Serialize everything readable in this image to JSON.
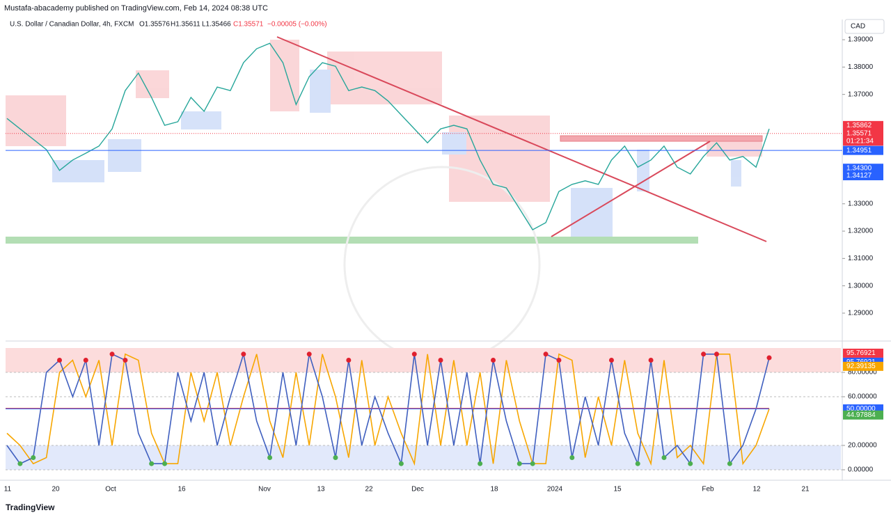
{
  "header": {
    "published": "Mustafa-abacademy published on TradingView.com, Feb 14, 2024 08:38 UTC",
    "symbol": "U.S. Dollar / Canadian Dollar, 4h, FXCM",
    "ohlc": [
      "O1.35576",
      "H1.35611",
      "L1.35466",
      "C1.35571",
      "−0.00005 (−0.00%)"
    ],
    "currency": "CAD",
    "footer": "TradingView"
  },
  "chart_data": [
    {
      "type": "line",
      "name": "price",
      "values": [
        1.3612,
        1.3574,
        1.3536,
        1.3498,
        1.3422,
        1.346,
        1.3485,
        1.3511,
        1.3574,
        1.3714,
        1.3778,
        1.3689,
        1.3587,
        1.36,
        1.3689,
        1.3638,
        1.3727,
        1.3714,
        1.3816,
        1.3867,
        1.3887,
        1.3816,
        1.3663,
        1.3765,
        1.3816,
        1.3803,
        1.3714,
        1.3727,
        1.3714,
        1.3676,
        1.3625,
        1.3574,
        1.3523,
        1.3574,
        1.3587,
        1.3574,
        1.346,
        1.3371,
        1.3358,
        1.3282,
        1.3205,
        1.3231,
        1.3345,
        1.3371,
        1.3384,
        1.3371,
        1.346,
        1.3511,
        1.3434,
        1.346,
        1.3511,
        1.3434,
        1.3409,
        1.3473,
        1.3523,
        1.346,
        1.3473,
        1.3434,
        1.3574
      ],
      "color": "#26a69a",
      "ylim": [
        1.2798,
        1.3974
      ],
      "yticks": [
        {
          "value": 1.39,
          "label": "1.39000"
        },
        {
          "value": 1.38,
          "label": "1.38000"
        },
        {
          "value": 1.37,
          "label": "1.37000"
        },
        {
          "value": 1.33,
          "label": "1.33000"
        },
        {
          "value": 1.32,
          "label": "1.32000"
        },
        {
          "value": 1.31,
          "label": "1.31000"
        },
        {
          "value": 1.3,
          "label": "1.30000"
        },
        {
          "value": 1.29,
          "label": "1.29000"
        }
      ],
      "badges": [
        {
          "value": 1.35862,
          "color": "#f23645"
        },
        {
          "value": 1.35862,
          "color": "#f23645"
        },
        {
          "value": 1.35571,
          "color": "#f23645",
          "timer": "01:21:34"
        },
        {
          "value": 1.34951,
          "color": "#2962ff"
        },
        {
          "value": {
            "value": 1.343,
            "label": "1.34300"
          },
          "color": "#2962ff"
        },
        {
          "value": 1.34127,
          "color": "#2962ff"
        }
      ],
      "x_labels": [
        "11",
        "20",
        "Oct",
        "16",
        "Nov",
        "13",
        "22",
        "Dec",
        "18",
        "2024",
        "15",
        "Feb",
        "12",
        "21"
      ]
    },
    {
      "type": "line",
      "name": "oscillator",
      "series": [
        {
          "color": "#f7a600",
          "values": [
            30,
            20,
            5,
            10,
            80,
            90,
            60,
            90,
            20,
            95,
            90,
            30,
            5,
            5,
            80,
            40,
            80,
            20,
            60,
            95,
            40,
            10,
            80,
            20,
            95,
            60,
            10,
            90,
            20,
            60,
            30,
            5,
            95,
            20,
            90,
            20,
            80,
            5,
            90,
            40,
            5,
            5,
            95,
            90,
            10,
            60,
            20,
            90,
            30,
            5,
            90,
            10,
            20,
            5,
            95,
            95,
            5,
            20,
            50
          ]
        },
        {
          "color": "#3f5fbf",
          "values": [
            20,
            5,
            10,
            80,
            90,
            60,
            90,
            20,
            95,
            90,
            30,
            5,
            5,
            80,
            40,
            80,
            20,
            60,
            95,
            40,
            10,
            80,
            20,
            95,
            60,
            10,
            90,
            20,
            60,
            30,
            5,
            95,
            20,
            90,
            20,
            80,
            5,
            90,
            40,
            5,
            5,
            95,
            90,
            10,
            60,
            20,
            90,
            30,
            5,
            90,
            10,
            20,
            5,
            95,
            95,
            5,
            20,
            50,
            92
          ]
        }
      ],
      "ylim": [
        -8.6,
        104.6
      ],
      "yticks": [
        {
          "value": 80,
          "label": "80.00000"
        },
        {
          "value": 60,
          "label": "60.00000"
        },
        {
          "value": 20,
          "label": "20.00000"
        },
        {
          "value": 0,
          "label": "0.00000"
        }
      ],
      "badges": [
        {
          "value": 95.76921,
          "color": "#f23645"
        },
        {
          "value": 95.76921,
          "color": "#2962ff"
        },
        {
          "value": 92.39135,
          "color": "#f7a600"
        },
        {
          "value": {
            "value": 50,
            "label": "50.00000"
          },
          "color": "#2962ff"
        },
        {
          "value": 44.97884,
          "color": "#4caf50"
        }
      ]
    }
  ]
}
